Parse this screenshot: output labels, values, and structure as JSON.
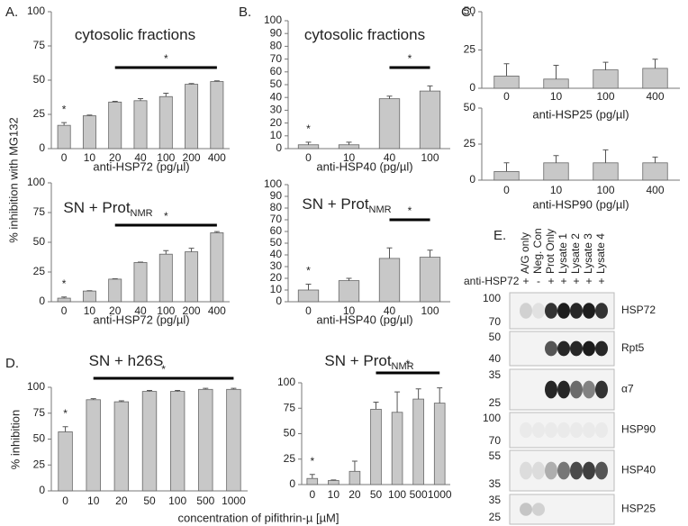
{
  "chart_data": [
    {
      "type": "bar",
      "panel": "A.",
      "title": "cytosolic fractions",
      "ylabel": "% inhibition with MG132",
      "xlabel": "anti-HSP72 (pg/µl)",
      "categories": [
        "0",
        "10",
        "20",
        "40",
        "100",
        "200",
        "400"
      ],
      "values": [
        17,
        24,
        34,
        35,
        38,
        47,
        49
      ],
      "errors": [
        2,
        0.5,
        0.5,
        1.5,
        2.5,
        0.5,
        0.5
      ],
      "color": "#c8c8c8",
      "ylim": [
        0,
        100
      ],
      "yticks": [
        0,
        25,
        50,
        75,
        100
      ],
      "significance": [
        {
          "label": "*",
          "from": "0",
          "to": "0"
        },
        {
          "label": "*",
          "from": "20",
          "to": "400"
        }
      ]
    },
    {
      "type": "bar",
      "title": "SN + Prot",
      "title_subscript": "NMR",
      "xlabel": "anti-HSP72 (pg/µl)",
      "categories": [
        "0",
        "10",
        "20",
        "40",
        "100",
        "200",
        "400"
      ],
      "values": [
        3,
        9,
        19,
        33,
        40,
        42,
        58
      ],
      "errors": [
        1,
        0.3,
        0.3,
        0.3,
        3,
        3,
        1
      ],
      "color": "#c8c8c8",
      "ylim": [
        0,
        100
      ],
      "yticks": [
        0,
        25,
        50,
        75,
        100
      ],
      "significance": [
        {
          "label": "*",
          "from": "0",
          "to": "0"
        },
        {
          "label": "*",
          "from": "20",
          "to": "400"
        }
      ]
    },
    {
      "type": "bar",
      "panel": "B.",
      "title": "cytosolic fractions",
      "xlabel": "anti-HSP40 (pg/µl)",
      "categories": [
        "0",
        "10",
        "40",
        "100"
      ],
      "values": [
        3,
        3,
        39,
        45
      ],
      "errors": [
        2,
        2,
        2,
        4
      ],
      "color": "#c8c8c8",
      "ylim": [
        0,
        100
      ],
      "yticks": [
        0,
        10,
        20,
        30,
        40,
        50,
        60,
        70,
        80,
        90,
        100
      ],
      "significance": [
        {
          "label": "*",
          "from": "0",
          "to": "0"
        },
        {
          "label": "*",
          "from": "40",
          "to": "100"
        }
      ]
    },
    {
      "type": "bar",
      "title": "SN + Prot",
      "title_subscript": "NMR",
      "xlabel": "anti-HSP40 (pg/µl)",
      "categories": [
        "0",
        "10",
        "40",
        "100"
      ],
      "values": [
        10,
        18,
        37,
        38
      ],
      "errors": [
        5,
        2,
        9,
        6
      ],
      "color": "#c8c8c8",
      "ylim": [
        0,
        100
      ],
      "yticks": [
        0,
        10,
        20,
        30,
        40,
        50,
        60,
        70,
        80,
        90,
        100
      ],
      "significance": [
        {
          "label": "*",
          "from": "0",
          "to": "0"
        },
        {
          "label": "*",
          "from": "40",
          "to": "100"
        }
      ]
    },
    {
      "type": "bar",
      "panel": "C.",
      "xlabel": "anti-HSP25 (pg/µl)",
      "categories": [
        "0",
        "10",
        "100",
        "400"
      ],
      "values": [
        8,
        6,
        12,
        13
      ],
      "errors": [
        8,
        9,
        5,
        6
      ],
      "color": "#c8c8c8",
      "ylim": [
        0,
        50
      ],
      "yticks": [
        0,
        25,
        50
      ]
    },
    {
      "type": "bar",
      "xlabel": "anti-HSP90 (pg/µl)",
      "categories": [
        "0",
        "10",
        "100",
        "400"
      ],
      "values": [
        6,
        12,
        12,
        12
      ],
      "errors": [
        6,
        5,
        9,
        4
      ],
      "color": "#c8c8c8",
      "ylim": [
        0,
        50
      ],
      "yticks": [
        0,
        25,
        50
      ]
    },
    {
      "type": "bar",
      "panel": "D.",
      "title": "SN + h26S",
      "ylabel": "% inhibition",
      "xlabel": "concentration of pifithrin-µ [µM]",
      "categories": [
        "0",
        "10",
        "20",
        "50",
        "100",
        "500",
        "1000"
      ],
      "values": [
        57,
        88,
        86,
        96,
        96,
        98,
        98
      ],
      "errors": [
        5,
        1,
        1,
        1,
        1,
        1,
        1
      ],
      "color": "#c8c8c8",
      "ylim": [
        0,
        100
      ],
      "yticks": [
        0,
        25,
        50,
        75,
        100
      ],
      "significance": [
        {
          "label": "*",
          "from": "0",
          "to": "0"
        },
        {
          "label": "*",
          "from": "10",
          "to": "1000"
        }
      ]
    },
    {
      "type": "bar",
      "title": "SN + Prot",
      "title_subscript": "NMR",
      "categories": [
        "0",
        "10",
        "20",
        "50",
        "100",
        "500",
        "1000"
      ],
      "values": [
        6,
        4,
        13,
        74,
        71,
        84,
        80
      ],
      "errors": [
        4,
        0.5,
        10,
        7,
        20,
        10,
        15
      ],
      "color": "#c8c8c8",
      "ylim": [
        0,
        100
      ],
      "yticks": [
        0,
        25,
        50,
        75,
        100
      ],
      "significance": [
        {
          "label": "*",
          "from": "0",
          "to": "0"
        },
        {
          "label": "*",
          "from": "50",
          "to": "1000"
        }
      ]
    }
  ],
  "blot": {
    "panel": "E.",
    "lanes": [
      "A/G only",
      "Neg. Con",
      "Prot Only",
      "Lysate 1",
      "Lysate 2",
      "Lysate 3",
      "Lysate 4"
    ],
    "treatment_label": "anti-HSP72",
    "signs": [
      "+",
      "-",
      "+",
      "+",
      "+",
      "+",
      "+"
    ],
    "rows": [
      {
        "protein": "HSP72",
        "markers": [
          100,
          70
        ]
      },
      {
        "protein": "Rpt5",
        "markers": [
          50,
          40
        ]
      },
      {
        "protein": "α7",
        "markers": [
          35,
          25
        ]
      },
      {
        "protein": "HSP90",
        "markers": [
          100,
          70
        ]
      },
      {
        "protein": "HSP40",
        "markers": [
          55,
          35
        ]
      },
      {
        "protein": "HSP25",
        "markers": [
          35,
          25
        ]
      }
    ]
  }
}
